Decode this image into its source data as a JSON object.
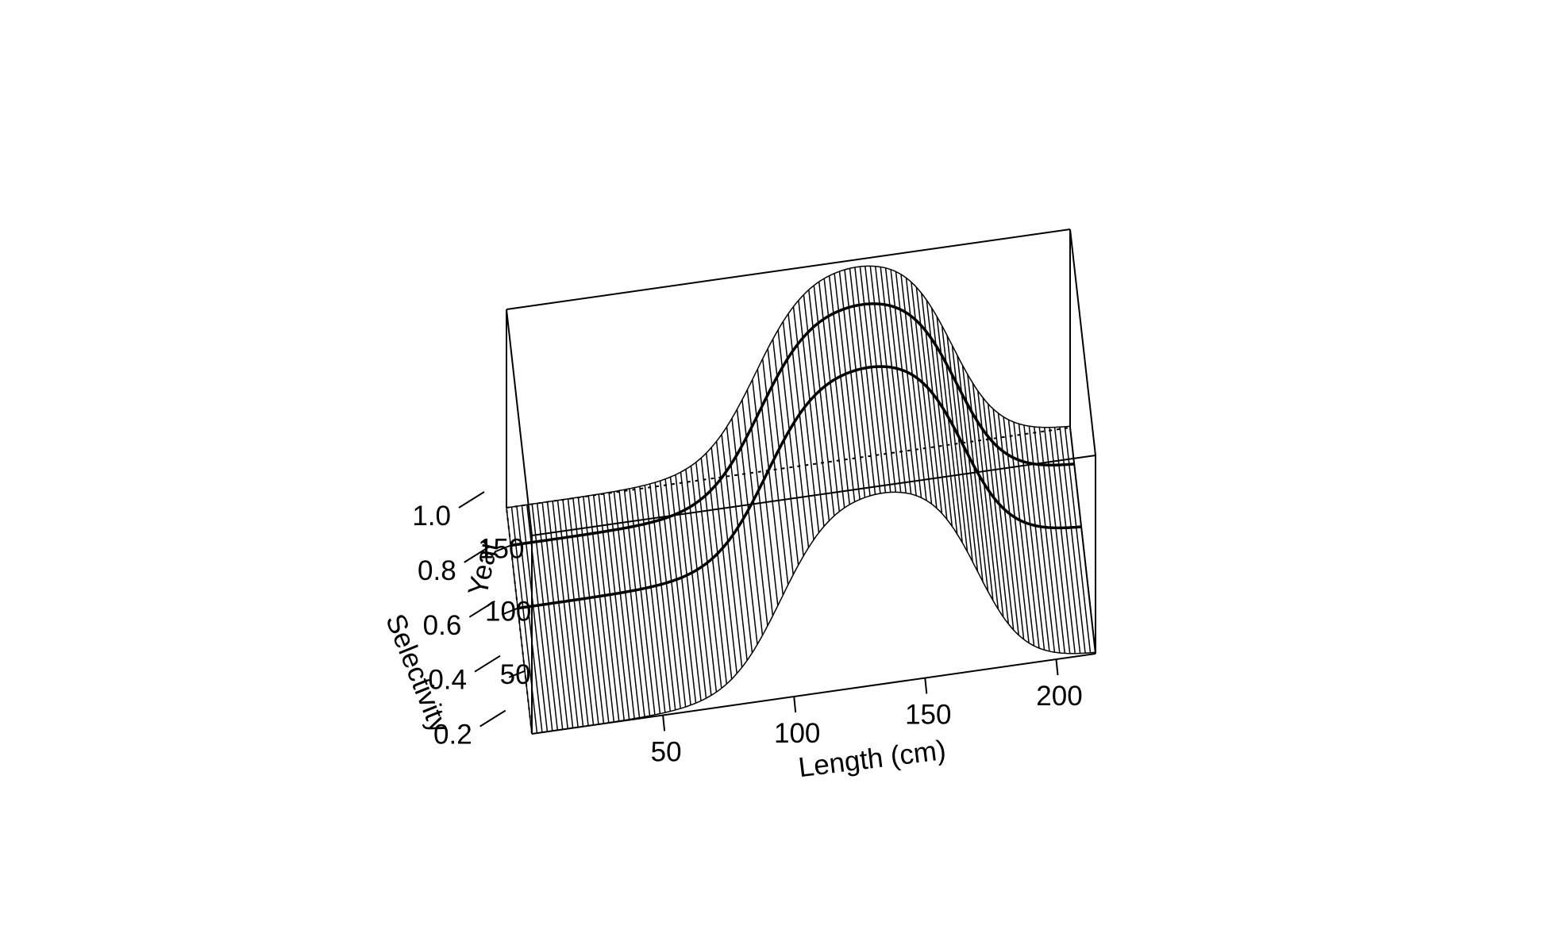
{
  "chart_data": {
    "type": "surface",
    "title": "",
    "xlabel": "Length (cm)",
    "ylabel": "Year",
    "zlabel": "Selectivity",
    "xlim": [
      0,
      215
    ],
    "ylim": [
      0,
      180
    ],
    "zlim": [
      0.1,
      1.0
    ],
    "x_ticks": [
      50,
      100,
      150,
      200
    ],
    "y_ticks": [
      50,
      100,
      150
    ],
    "z_ticks": [
      0.2,
      0.4,
      0.6,
      0.8,
      1.0
    ],
    "x_tick_labels": [
      "50",
      "100",
      "150",
      "200"
    ],
    "y_tick_labels": [
      "50",
      "100",
      "150"
    ],
    "z_tick_labels": [
      "0.2",
      "0.4",
      "0.6",
      "0.8",
      "1.0"
    ],
    "highlighted_years": [
      100,
      150
    ],
    "surface": {
      "description_of_function": "dome-shaped selectivity by length; ascending limb centered near 95 cm, descending limb centered near 170 cm; constant across years",
      "years_range": [
        0,
        180
      ],
      "length_range": [
        0,
        215
      ],
      "peak_selectivity": 1.0,
      "min_selectivity": 0.1
    }
  }
}
